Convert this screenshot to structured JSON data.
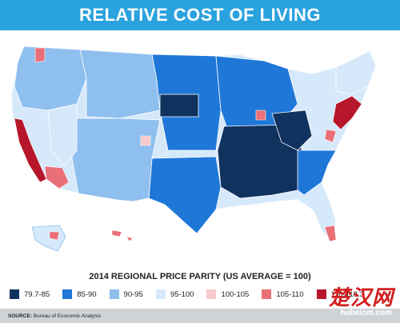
{
  "title": "RELATIVE COST OF LIVING",
  "legend": {
    "title": "2014 REGIONAL PRICE PARITY (US AVERAGE = 100)",
    "items": [
      {
        "label": "79.7-85",
        "color": "#10325e"
      },
      {
        "label": "85-90",
        "color": "#1f77d8"
      },
      {
        "label": "90-95",
        "color": "#8fbfee"
      },
      {
        "label": "95-100",
        "color": "#d6e9fb"
      },
      {
        "label": "100-105",
        "color": "#f7c9cc"
      },
      {
        "label": "105-110",
        "color": "#ea6f77"
      },
      {
        "label": "110-118.3",
        "color": "#b8162a"
      }
    ]
  },
  "source": {
    "key": "SOURCE:",
    "text": "Bureau of Economic Analysis"
  },
  "watermark": {
    "text": "楚汉网",
    "url": "hubeicm.com"
  },
  "colors": {
    "header": "#2aa2de",
    "water": "#ffffff",
    "footer": "#cfd3d6"
  }
}
